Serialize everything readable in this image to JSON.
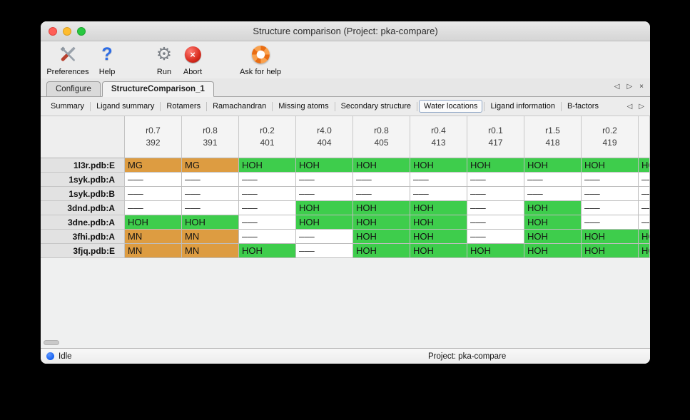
{
  "window": {
    "title": "Structure comparison (Project: pka-compare)"
  },
  "toolbar": {
    "preferences_label": "Preferences",
    "help_label": "Help",
    "run_label": "Run",
    "abort_label": "Abort",
    "ask_label": "Ask for help"
  },
  "icons": {
    "help": "?",
    "gear": "⚙",
    "abort": "×",
    "tab_prev": "◁",
    "tab_next": "▷",
    "tab_close": "×"
  },
  "tabs": {
    "configure": "Configure",
    "structure_comparison": "StructureComparison_1"
  },
  "subtabs": {
    "items": [
      "Summary",
      "Ligand summary",
      "Rotamers",
      "Ramachandran",
      "Missing atoms",
      "Secondary structure",
      "Water locations",
      "Ligand information",
      "B-factors"
    ],
    "selected": "Water locations"
  },
  "table": {
    "columns": [
      {
        "r": "r0.7",
        "num": "392"
      },
      {
        "r": "r0.8",
        "num": "391"
      },
      {
        "r": "r0.2",
        "num": "401"
      },
      {
        "r": "r4.0",
        "num": "404"
      },
      {
        "r": "r0.8",
        "num": "405"
      },
      {
        "r": "r0.4",
        "num": "413"
      },
      {
        "r": "r0.1",
        "num": "417"
      },
      {
        "r": "r1.5",
        "num": "418"
      },
      {
        "r": "r0.2",
        "num": "419"
      },
      {
        "r": "",
        "num": "",
        "partial": true
      }
    ],
    "rows": [
      {
        "label": "1l3r.pdb:E",
        "cells": [
          "MG",
          "MG",
          "HOH",
          "HOH",
          "HOH",
          "HOH",
          "HOH",
          "HOH",
          "HOH",
          "HOH"
        ]
      },
      {
        "label": "1syk.pdb:A",
        "cells": [
          "–––",
          "–––",
          "–––",
          "–––",
          "–––",
          "–––",
          "–––",
          "–––",
          "–––",
          "–––"
        ]
      },
      {
        "label": "1syk.pdb:B",
        "cells": [
          "–––",
          "–––",
          "–––",
          "–––",
          "–––",
          "–––",
          "–––",
          "–––",
          "–––",
          "–––"
        ]
      },
      {
        "label": "3dnd.pdb:A",
        "cells": [
          "–––",
          "–––",
          "–––",
          "HOH",
          "HOH",
          "HOH",
          "–––",
          "HOH",
          "–––",
          "–––"
        ]
      },
      {
        "label": "3dne.pdb:A",
        "cells": [
          "HOH",
          "HOH",
          "–––",
          "HOH",
          "HOH",
          "HOH",
          "–––",
          "HOH",
          "–––",
          "–––"
        ]
      },
      {
        "label": "3fhi.pdb:A",
        "cells": [
          "MN",
          "MN",
          "–––",
          "–––",
          "HOH",
          "HOH",
          "–––",
          "HOH",
          "HOH",
          "HOH"
        ]
      },
      {
        "label": "3fjq.pdb:E",
        "cells": [
          "MN",
          "MN",
          "HOH",
          "–––",
          "HOH",
          "HOH",
          "HOH",
          "HOH",
          "HOH",
          "HOH"
        ]
      }
    ]
  },
  "statusbar": {
    "status": "Idle",
    "project": "Project: pka-compare"
  },
  "colors": {
    "water": "#3ecd4c",
    "ion": "#dd9c41",
    "empty": "#ffffff",
    "status_dot": "#1560f0"
  }
}
